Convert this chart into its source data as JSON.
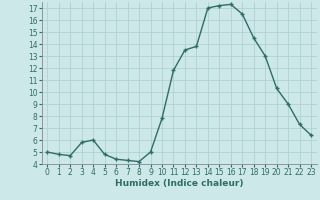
{
  "xlabel": "Humidex (Indice chaleur)",
  "x": [
    0,
    1,
    2,
    3,
    4,
    5,
    6,
    7,
    8,
    9,
    10,
    11,
    12,
    13,
    14,
    15,
    16,
    17,
    18,
    19,
    20,
    21,
    22,
    23
  ],
  "y": [
    5.0,
    4.8,
    4.7,
    5.8,
    6.0,
    4.8,
    4.4,
    4.3,
    4.2,
    5.0,
    7.8,
    11.8,
    13.5,
    13.8,
    17.0,
    17.2,
    17.3,
    16.5,
    14.5,
    13.0,
    10.3,
    9.0,
    7.3,
    6.4
  ],
  "line_color": "#2e6e65",
  "bg_color": "#cce8e8",
  "grid_color": "#aacece",
  "tick_label_color": "#2e6e65",
  "xlabel_color": "#2e6e65",
  "ylim": [
    4,
    17.5
  ],
  "yticks": [
    4,
    5,
    6,
    7,
    8,
    9,
    10,
    11,
    12,
    13,
    14,
    15,
    16,
    17
  ],
  "xlim": [
    -0.5,
    23.5
  ],
  "xticks": [
    0,
    1,
    2,
    3,
    4,
    5,
    6,
    7,
    8,
    9,
    10,
    11,
    12,
    13,
    14,
    15,
    16,
    17,
    18,
    19,
    20,
    21,
    22,
    23
  ]
}
